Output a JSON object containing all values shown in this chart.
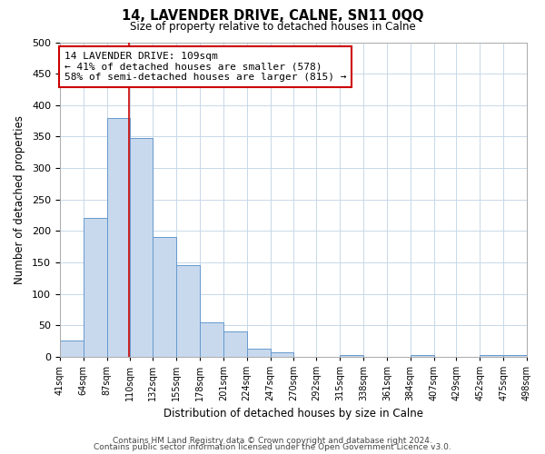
{
  "title": "14, LAVENDER DRIVE, CALNE, SN11 0QQ",
  "subtitle": "Size of property relative to detached houses in Calne",
  "xlabel": "Distribution of detached houses by size in Calne",
  "ylabel": "Number of detached properties",
  "bin_edges": [
    41,
    64,
    87,
    110,
    132,
    155,
    178,
    201,
    224,
    247,
    270,
    292,
    315,
    338,
    361,
    384,
    407,
    429,
    452,
    475,
    498
  ],
  "bar_heights": [
    25,
    220,
    380,
    348,
    190,
    145,
    55,
    40,
    12,
    7,
    0,
    0,
    2,
    0,
    0,
    2,
    0,
    0,
    2,
    2
  ],
  "bar_color": "#c8d9ee",
  "bar_edge_color": "#6699cc",
  "property_size": 109,
  "vline_color": "#cc0000",
  "annotation_line1": "14 LAVENDER DRIVE: 109sqm",
  "annotation_line2": "← 41% of detached houses are smaller (578)",
  "annotation_line3": "58% of semi-detached houses are larger (815) →",
  "annotation_box_edge": "#cc0000",
  "annotation_box_face": "#ffffff",
  "ylim": [
    0,
    500
  ],
  "yticks": [
    0,
    50,
    100,
    150,
    200,
    250,
    300,
    350,
    400,
    450,
    500
  ],
  "tick_labels": [
    "41sqm",
    "64sqm",
    "87sqm",
    "110sqm",
    "132sqm",
    "155sqm",
    "178sqm",
    "201sqm",
    "224sqm",
    "247sqm",
    "270sqm",
    "292sqm",
    "315sqm",
    "338sqm",
    "361sqm",
    "384sqm",
    "407sqm",
    "429sqm",
    "452sqm",
    "475sqm",
    "498sqm"
  ],
  "footer1": "Contains HM Land Registry data © Crown copyright and database right 2024.",
  "footer2": "Contains public sector information licensed under the Open Government Licence v3.0.",
  "bg_color": "#ffffff",
  "grid_color": "#c8d8e8"
}
